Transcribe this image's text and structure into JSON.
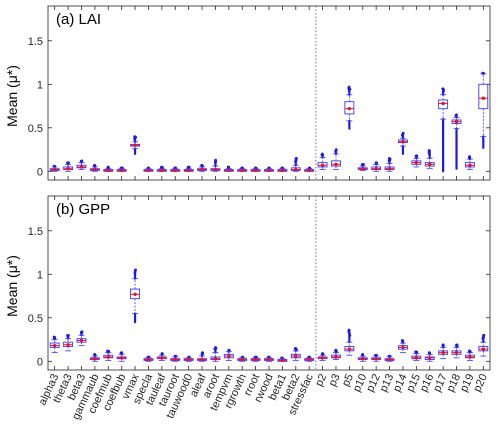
{
  "chart_data": [
    {
      "type": "box",
      "title": "(a) LAI",
      "ylabel": "Mean (μ*)",
      "ylim": [
        -0.1,
        1.9
      ],
      "yticks": [
        "0",
        "0.5",
        "1",
        "1.5"
      ],
      "separator_after": "stressfac",
      "colors": {
        "box": "#3b3bff",
        "median": "#e8132b",
        "outlier": "#1c1cdb",
        "separator": "#666666"
      },
      "categories": [
        "alpha3",
        "theta3",
        "beta3",
        "gammaub",
        "coefmub",
        "coefbub",
        "vmax",
        "specla",
        "tauleaf",
        "tauroot",
        "tauwood0",
        "aleaf",
        "aroot",
        "tempvm",
        "rgrowth",
        "rroot",
        "rwood",
        "beta1",
        "beta2",
        "stressfac",
        "p2",
        "p3",
        "p5",
        "p10",
        "p12",
        "p13",
        "p14",
        "p15",
        "p16",
        "p17",
        "p18",
        "p19",
        "p20"
      ],
      "boxes": [
        {
          "name": "alpha3",
          "q1": 0.01,
          "median": 0.02,
          "q3": 0.03,
          "whisker_low": 0.0,
          "whisker_high": 0.05,
          "outlier_max": 0.06
        },
        {
          "name": "theta3",
          "q1": 0.02,
          "median": 0.03,
          "q3": 0.05,
          "whisker_low": 0.0,
          "whisker_high": 0.08,
          "outlier_max": 0.1
        },
        {
          "name": "beta3",
          "q1": 0.04,
          "median": 0.05,
          "q3": 0.07,
          "whisker_low": 0.02,
          "whisker_high": 0.1,
          "outlier_max": 0.12
        },
        {
          "name": "gammaub",
          "q1": 0.01,
          "median": 0.02,
          "q3": 0.03,
          "whisker_low": 0.0,
          "whisker_high": 0.05,
          "outlier_max": 0.07
        },
        {
          "name": "coefmub",
          "q1": 0.0,
          "median": 0.01,
          "q3": 0.02,
          "whisker_low": 0.0,
          "whisker_high": 0.03,
          "outlier_max": 0.05
        },
        {
          "name": "coefbub",
          "q1": 0.0,
          "median": 0.01,
          "q3": 0.02,
          "whisker_low": 0.0,
          "whisker_high": 0.03,
          "outlier_max": 0.04
        },
        {
          "name": "vmax",
          "q1": 0.29,
          "median": 0.3,
          "q3": 0.31,
          "whisker_low": 0.26,
          "whisker_high": 0.34,
          "outlier_min": 0.2,
          "outlier_max": 0.4
        },
        {
          "name": "specla",
          "q1": 0.0,
          "median": 0.01,
          "q3": 0.02,
          "whisker_low": 0.0,
          "whisker_high": 0.03,
          "outlier_max": 0.04
        },
        {
          "name": "tauleaf",
          "q1": 0.0,
          "median": 0.01,
          "q3": 0.02,
          "whisker_low": 0.0,
          "whisker_high": 0.03,
          "outlier_max": 0.05
        },
        {
          "name": "tauroot",
          "q1": 0.0,
          "median": 0.01,
          "q3": 0.02,
          "whisker_low": 0.0,
          "whisker_high": 0.03,
          "outlier_max": 0.04
        },
        {
          "name": "tauwood0",
          "q1": 0.0,
          "median": 0.01,
          "q3": 0.02,
          "whisker_low": 0.0,
          "whisker_high": 0.03,
          "outlier_max": 0.05
        },
        {
          "name": "aleaf",
          "q1": 0.01,
          "median": 0.02,
          "q3": 0.03,
          "whisker_low": 0.0,
          "whisker_high": 0.05,
          "outlier_max": 0.07
        },
        {
          "name": "aroot",
          "q1": 0.01,
          "median": 0.02,
          "q3": 0.03,
          "whisker_low": 0.0,
          "whisker_high": 0.06,
          "outlier_max": 0.13
        },
        {
          "name": "tempvm",
          "q1": 0.0,
          "median": 0.01,
          "q3": 0.02,
          "whisker_low": 0.0,
          "whisker_high": 0.03,
          "outlier_max": 0.05
        },
        {
          "name": "rgrowth",
          "q1": 0.0,
          "median": 0.01,
          "q3": 0.02,
          "whisker_low": 0.0,
          "whisker_high": 0.03,
          "outlier_max": 0.04
        },
        {
          "name": "rroot",
          "q1": 0.0,
          "median": 0.01,
          "q3": 0.02,
          "whisker_low": 0.0,
          "whisker_high": 0.03,
          "outlier_max": 0.04
        },
        {
          "name": "rwood",
          "q1": 0.0,
          "median": 0.01,
          "q3": 0.02,
          "whisker_low": 0.0,
          "whisker_high": 0.03,
          "outlier_max": 0.04
        },
        {
          "name": "beta1",
          "q1": 0.0,
          "median": 0.01,
          "q3": 0.02,
          "whisker_low": 0.0,
          "whisker_high": 0.03,
          "outlier_max": 0.04
        },
        {
          "name": "beta2",
          "q1": 0.01,
          "median": 0.02,
          "q3": 0.04,
          "whisker_low": 0.0,
          "whisker_high": 0.07,
          "outlier_max": 0.15
        },
        {
          "name": "stressfac",
          "q1": 0.0,
          "median": 0.01,
          "q3": 0.02,
          "whisker_low": 0.0,
          "whisker_high": 0.03,
          "outlier_max": 0.04
        },
        {
          "name": "p2",
          "q1": 0.05,
          "median": 0.07,
          "q3": 0.1,
          "whisker_low": 0.02,
          "whisker_high": 0.16,
          "outlier_max": 0.2
        },
        {
          "name": "p3",
          "q1": 0.06,
          "median": 0.08,
          "q3": 0.12,
          "whisker_low": 0.02,
          "whisker_high": 0.2,
          "outlier_max": 0.25
        },
        {
          "name": "p5",
          "q1": 0.66,
          "median": 0.72,
          "q3": 0.8,
          "whisker_low": 0.58,
          "whisker_high": 0.88,
          "outlier_min": 0.49,
          "outlier_max": 0.97
        },
        {
          "name": "p10",
          "q1": 0.02,
          "median": 0.03,
          "q3": 0.04,
          "whisker_low": 0.01,
          "whisker_high": 0.06,
          "outlier_max": 0.08
        },
        {
          "name": "p12",
          "q1": 0.02,
          "median": 0.03,
          "q3": 0.05,
          "whisker_low": 0.0,
          "whisker_high": 0.08,
          "outlier_max": 0.1
        },
        {
          "name": "p13",
          "q1": 0.02,
          "median": 0.03,
          "q3": 0.05,
          "whisker_low": 0.0,
          "whisker_high": 0.09,
          "outlier_max": 0.15
        },
        {
          "name": "p14",
          "q1": 0.33,
          "median": 0.34,
          "q3": 0.36,
          "whisker_low": 0.29,
          "whisker_high": 0.38,
          "outlier_min": 0.2,
          "outlier_max": 0.44
        },
        {
          "name": "p15",
          "q1": 0.08,
          "median": 0.1,
          "q3": 0.12,
          "whisker_low": 0.05,
          "whisker_high": 0.15,
          "outlier_max": 0.18
        },
        {
          "name": "p16",
          "q1": 0.06,
          "median": 0.08,
          "q3": 0.1,
          "whisker_low": 0.03,
          "whisker_high": 0.15,
          "outlier_max": 0.24
        },
        {
          "name": "p17",
          "q1": 0.72,
          "median": 0.78,
          "q3": 0.82,
          "whisker_low": 0.6,
          "whisker_high": 0.88,
          "outlier_min": 0.0,
          "outlier_max": 0.95
        },
        {
          "name": "p18",
          "q1": 0.55,
          "median": 0.57,
          "q3": 0.59,
          "whisker_low": 0.49,
          "whisker_high": 0.62,
          "outlier_min": 0.03,
          "outlier_max": 0.65
        },
        {
          "name": "p19",
          "q1": 0.05,
          "median": 0.07,
          "q3": 0.1,
          "whisker_low": 0.02,
          "whisker_high": 0.14,
          "outlier_max": 0.17
        },
        {
          "name": "p20",
          "q1": 0.72,
          "median": 0.84,
          "q3": 1.0,
          "whisker_low": 0.4,
          "whisker_high": 1.12,
          "outlier_min": 0.27,
          "outlier_max": 1.13
        }
      ]
    },
    {
      "type": "box",
      "title": "(b) GPP",
      "ylabel": "Mean (μ*)",
      "ylim": [
        -0.1,
        1.9
      ],
      "yticks": [
        "0",
        "0.5",
        "1",
        "1.5"
      ],
      "separator_after": "stressfac",
      "colors": {
        "box": "#3b3bff",
        "median": "#e8132b",
        "outlier": "#1c1cdb",
        "separator": "#666666"
      },
      "categories": [
        "alpha3",
        "theta3",
        "beta3",
        "gammaub",
        "coefmub",
        "coefbub",
        "vmax",
        "specla",
        "tauleaf",
        "tauroot",
        "tauwood0",
        "aleaf",
        "aroot",
        "tempvm",
        "rgrowth",
        "rroot",
        "rwood",
        "beta1",
        "beta2",
        "stressfac",
        "p2",
        "p3",
        "p5",
        "p10",
        "p12",
        "p13",
        "p14",
        "p15",
        "p16",
        "p17",
        "p18",
        "p19",
        "p20"
      ],
      "boxes": [
        {
          "name": "alpha3",
          "q1": 0.16,
          "median": 0.18,
          "q3": 0.21,
          "whisker_low": 0.1,
          "whisker_high": 0.25,
          "outlier_max": 0.28
        },
        {
          "name": "theta3",
          "q1": 0.17,
          "median": 0.19,
          "q3": 0.22,
          "whisker_low": 0.12,
          "whisker_high": 0.26,
          "outlier_max": 0.3
        },
        {
          "name": "beta3",
          "q1": 0.22,
          "median": 0.24,
          "q3": 0.26,
          "whisker_low": 0.18,
          "whisker_high": 0.3,
          "outlier_max": 0.34
        },
        {
          "name": "gammaub",
          "q1": 0.02,
          "median": 0.03,
          "q3": 0.04,
          "whisker_low": 0.0,
          "whisker_high": 0.06,
          "outlier_max": 0.08
        },
        {
          "name": "coefmub",
          "q1": 0.04,
          "median": 0.05,
          "q3": 0.07,
          "whisker_low": 0.01,
          "whisker_high": 0.1,
          "outlier_max": 0.12
        },
        {
          "name": "coefbub",
          "q1": 0.03,
          "median": 0.04,
          "q3": 0.05,
          "whisker_low": 0.0,
          "whisker_high": 0.08,
          "outlier_max": 0.1
        },
        {
          "name": "vmax",
          "q1": 0.72,
          "median": 0.77,
          "q3": 0.83,
          "whisker_low": 0.55,
          "whisker_high": 0.95,
          "outlier_min": 0.45,
          "outlier_max": 1.05
        },
        {
          "name": "specla",
          "q1": 0.01,
          "median": 0.02,
          "q3": 0.03,
          "whisker_low": 0.0,
          "whisker_high": 0.04,
          "outlier_max": 0.05
        },
        {
          "name": "tauleaf",
          "q1": 0.03,
          "median": 0.04,
          "q3": 0.05,
          "whisker_low": 0.01,
          "whisker_high": 0.07,
          "outlier_max": 0.09
        },
        {
          "name": "tauroot",
          "q1": 0.01,
          "median": 0.02,
          "q3": 0.03,
          "whisker_low": 0.0,
          "whisker_high": 0.05,
          "outlier_max": 0.06
        },
        {
          "name": "tauwood0",
          "q1": 0.01,
          "median": 0.02,
          "q3": 0.03,
          "whisker_low": 0.0,
          "whisker_high": 0.04,
          "outlier_max": 0.05
        },
        {
          "name": "aleaf",
          "q1": 0.01,
          "median": 0.02,
          "q3": 0.03,
          "whisker_low": 0.0,
          "whisker_high": 0.06,
          "outlier_max": 0.1
        },
        {
          "name": "aroot",
          "q1": 0.02,
          "median": 0.03,
          "q3": 0.05,
          "whisker_low": 0.0,
          "whisker_high": 0.1,
          "outlier_max": 0.16
        },
        {
          "name": "tempvm",
          "q1": 0.04,
          "median": 0.06,
          "q3": 0.08,
          "whisker_low": 0.01,
          "whisker_high": 0.11,
          "outlier_max": 0.13
        },
        {
          "name": "rgrowth",
          "q1": 0.01,
          "median": 0.02,
          "q3": 0.03,
          "whisker_low": 0.0,
          "whisker_high": 0.04,
          "outlier_max": 0.05
        },
        {
          "name": "rroot",
          "q1": 0.01,
          "median": 0.02,
          "q3": 0.03,
          "whisker_low": 0.0,
          "whisker_high": 0.04,
          "outlier_max": 0.05
        },
        {
          "name": "rwood",
          "q1": 0.01,
          "median": 0.02,
          "q3": 0.03,
          "whisker_low": 0.0,
          "whisker_high": 0.04,
          "outlier_max": 0.05
        },
        {
          "name": "beta1",
          "q1": 0.0,
          "median": 0.01,
          "q3": 0.02,
          "whisker_low": 0.0,
          "whisker_high": 0.03,
          "outlier_max": 0.04
        },
        {
          "name": "beta2",
          "q1": 0.04,
          "median": 0.06,
          "q3": 0.08,
          "whisker_low": 0.01,
          "whisker_high": 0.12,
          "outlier_max": 0.15
        },
        {
          "name": "stressfac",
          "q1": 0.01,
          "median": 0.02,
          "q3": 0.03,
          "whisker_low": 0.0,
          "whisker_high": 0.04,
          "outlier_max": 0.05
        },
        {
          "name": "p2",
          "q1": 0.03,
          "median": 0.04,
          "q3": 0.05,
          "whisker_low": 0.01,
          "whisker_high": 0.07,
          "outlier_max": 0.09
        },
        {
          "name": "p3",
          "q1": 0.04,
          "median": 0.05,
          "q3": 0.07,
          "whisker_low": 0.02,
          "whisker_high": 0.1,
          "outlier_max": 0.13
        },
        {
          "name": "p5",
          "q1": 0.12,
          "median": 0.14,
          "q3": 0.17,
          "whisker_low": 0.07,
          "whisker_high": 0.22,
          "outlier_max": 0.36
        },
        {
          "name": "p10",
          "q1": 0.02,
          "median": 0.03,
          "q3": 0.04,
          "whisker_low": 0.0,
          "whisker_high": 0.06,
          "outlier_max": 0.08
        },
        {
          "name": "p12",
          "q1": 0.02,
          "median": 0.03,
          "q3": 0.04,
          "whisker_low": 0.0,
          "whisker_high": 0.06,
          "outlier_max": 0.07
        },
        {
          "name": "p13",
          "q1": 0.01,
          "median": 0.02,
          "q3": 0.03,
          "whisker_low": 0.0,
          "whisker_high": 0.05,
          "outlier_max": 0.06
        },
        {
          "name": "p14",
          "q1": 0.14,
          "median": 0.16,
          "q3": 0.18,
          "whisker_low": 0.1,
          "whisker_high": 0.21,
          "outlier_max": 0.24
        },
        {
          "name": "p15",
          "q1": 0.03,
          "median": 0.04,
          "q3": 0.06,
          "whisker_low": 0.01,
          "whisker_high": 0.09,
          "outlier_max": 0.11
        },
        {
          "name": "p16",
          "q1": 0.02,
          "median": 0.04,
          "q3": 0.05,
          "whisker_low": 0.0,
          "whisker_high": 0.08,
          "outlier_max": 0.1
        },
        {
          "name": "p17",
          "q1": 0.08,
          "median": 0.1,
          "q3": 0.12,
          "whisker_low": 0.03,
          "whisker_high": 0.16,
          "outlier_max": 0.19
        },
        {
          "name": "p18",
          "q1": 0.08,
          "median": 0.1,
          "q3": 0.12,
          "whisker_low": 0.04,
          "whisker_high": 0.16,
          "outlier_max": 0.19
        },
        {
          "name": "p19",
          "q1": 0.04,
          "median": 0.05,
          "q3": 0.07,
          "whisker_low": 0.01,
          "whisker_high": 0.1,
          "outlier_max": 0.12
        },
        {
          "name": "p20",
          "q1": 0.12,
          "median": 0.14,
          "q3": 0.17,
          "whisker_low": 0.06,
          "whisker_high": 0.22,
          "outlier_max": 0.3
        }
      ]
    }
  ]
}
